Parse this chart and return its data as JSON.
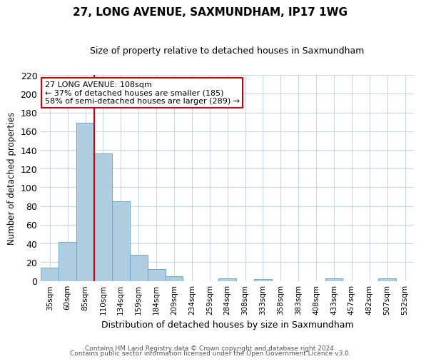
{
  "title": "27, LONG AVENUE, SAXMUNDHAM, IP17 1WG",
  "subtitle": "Size of property relative to detached houses in Saxmundham",
  "xlabel": "Distribution of detached houses by size in Saxmundham",
  "ylabel": "Number of detached properties",
  "footer_line1": "Contains HM Land Registry data © Crown copyright and database right 2024.",
  "footer_line2": "Contains public sector information licensed under the Open Government Licence v3.0.",
  "bin_labels": [
    "35sqm",
    "60sqm",
    "85sqm",
    "110sqm",
    "134sqm",
    "159sqm",
    "184sqm",
    "209sqm",
    "234sqm",
    "259sqm",
    "284sqm",
    "308sqm",
    "333sqm",
    "358sqm",
    "383sqm",
    "408sqm",
    "433sqm",
    "457sqm",
    "482sqm",
    "507sqm",
    "532sqm"
  ],
  "bar_heights": [
    14,
    42,
    169,
    136,
    85,
    28,
    13,
    5,
    0,
    0,
    3,
    0,
    2,
    0,
    0,
    0,
    3,
    0,
    0,
    3,
    0
  ],
  "bar_color": "#aecde1",
  "bar_edge_color": "#6aaac8",
  "vline_x": 2.5,
  "vline_color": "#cc0000",
  "ylim": [
    0,
    220
  ],
  "yticks": [
    0,
    20,
    40,
    60,
    80,
    100,
    120,
    140,
    160,
    180,
    200,
    220
  ],
  "annotation_line1": "27 LONG AVENUE: 108sqm",
  "annotation_line2": "← 37% of detached houses are smaller (185)",
  "annotation_line3": "58% of semi-detached houses are larger (289) →",
  "bg_color": "#ffffff",
  "grid_color": "#c8d8e8"
}
